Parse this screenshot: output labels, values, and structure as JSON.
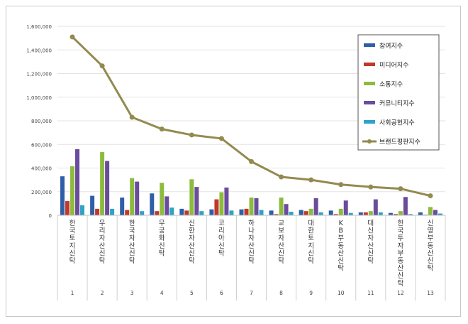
{
  "chart_data": {
    "type": "bar",
    "categories": [
      "한국토지신탁",
      "우리자산신탁",
      "한국자산신탁",
      "무궁화신탁",
      "신한자산신탁",
      "코리아신탁",
      "하나자산신탁",
      "교보자산신탁",
      "대한토지신탁",
      "KB부동산신탁",
      "대신자산신탁",
      "한국투자부동산신탁",
      "신영부동산신탁"
    ],
    "ranks": [
      "1",
      "2",
      "3",
      "4",
      "5",
      "6",
      "7",
      "8",
      "9",
      "10",
      "11",
      "12",
      "13"
    ],
    "ylim": [
      0,
      1600000
    ],
    "yticks": [
      "0",
      "200,000",
      "400,000",
      "600,000",
      "800,000",
      "1,000,000",
      "1,200,000",
      "1,400,000",
      "1,600,000"
    ],
    "grid": true,
    "legend_position": "top-right",
    "series": [
      {
        "name": "참여지수",
        "type": "bar",
        "color": "#2e5fa8",
        "values": [
          330000,
          165000,
          150000,
          185000,
          55000,
          50000,
          50000,
          40000,
          45000,
          40000,
          25000,
          20000,
          25000
        ]
      },
      {
        "name": "미디어지수",
        "type": "bar",
        "color": "#c0392b",
        "values": [
          120000,
          55000,
          45000,
          35000,
          40000,
          135000,
          55000,
          10000,
          35000,
          10000,
          25000,
          10000,
          5000
        ]
      },
      {
        "name": "소통지수",
        "type": "bar",
        "color": "#8dbb3e",
        "values": [
          415000,
          535000,
          315000,
          275000,
          305000,
          195000,
          150000,
          150000,
          55000,
          55000,
          35000,
          35000,
          70000
        ]
      },
      {
        "name": "커뮤니티지수",
        "type": "bar",
        "color": "#6a4c9c",
        "values": [
          560000,
          460000,
          285000,
          160000,
          240000,
          235000,
          145000,
          95000,
          145000,
          125000,
          135000,
          155000,
          45000
        ]
      },
      {
        "name": "사회공헌지수",
        "type": "bar",
        "color": "#2fa3c4",
        "values": [
          85000,
          55000,
          35000,
          65000,
          35000,
          40000,
          45000,
          30000,
          25000,
          20000,
          25000,
          10000,
          15000
        ]
      },
      {
        "name": "브랜드평판지수",
        "type": "line",
        "color": "#938a4f",
        "values": [
          1510000,
          1265000,
          830000,
          730000,
          680000,
          650000,
          455000,
          325000,
          300000,
          260000,
          240000,
          225000,
          165000
        ]
      }
    ]
  }
}
